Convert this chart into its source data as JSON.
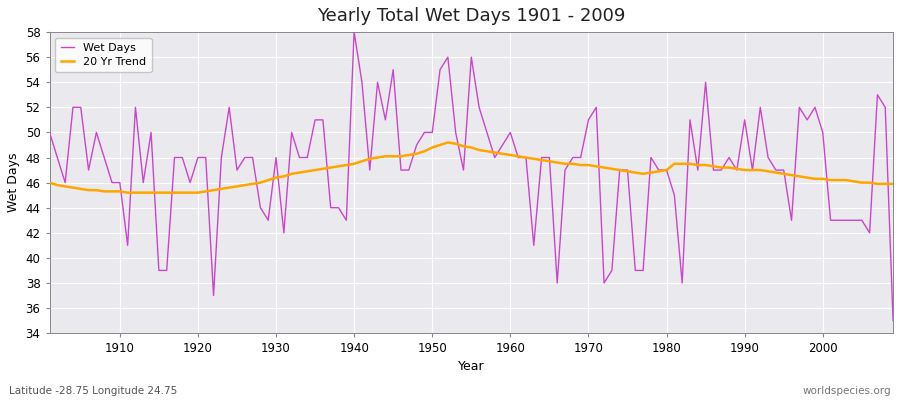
{
  "title": "Yearly Total Wet Days 1901 - 2009",
  "xlabel": "Year",
  "ylabel": "Wet Days",
  "subtitle": "Latitude -28.75 Longitude 24.75",
  "watermark": "worldspecies.org",
  "line_color": "#cc44cc",
  "trend_color": "#ffa500",
  "ylim": [
    34,
    58
  ],
  "yticks": [
    34,
    36,
    38,
    40,
    42,
    44,
    46,
    48,
    50,
    52,
    54,
    56,
    58
  ],
  "xlim": [
    1901,
    2009
  ],
  "xticks": [
    1910,
    1920,
    1930,
    1940,
    1950,
    1960,
    1970,
    1980,
    1990,
    2000
  ],
  "bg_color": "#eaeaee",
  "fig_color": "#ffffff",
  "grid_color": "#ffffff",
  "years": [
    1901,
    1902,
    1903,
    1904,
    1905,
    1906,
    1907,
    1908,
    1909,
    1910,
    1911,
    1912,
    1913,
    1914,
    1915,
    1916,
    1917,
    1918,
    1919,
    1920,
    1921,
    1922,
    1923,
    1924,
    1925,
    1926,
    1927,
    1928,
    1929,
    1930,
    1931,
    1932,
    1933,
    1934,
    1935,
    1936,
    1937,
    1938,
    1939,
    1940,
    1941,
    1942,
    1943,
    1944,
    1945,
    1946,
    1947,
    1948,
    1949,
    1950,
    1951,
    1952,
    1953,
    1954,
    1955,
    1956,
    1957,
    1958,
    1959,
    1960,
    1961,
    1962,
    1963,
    1964,
    1965,
    1966,
    1967,
    1968,
    1969,
    1970,
    1971,
    1972,
    1973,
    1974,
    1975,
    1976,
    1977,
    1978,
    1979,
    1980,
    1981,
    1982,
    1983,
    1984,
    1985,
    1986,
    1987,
    1988,
    1989,
    1990,
    1991,
    1992,
    1993,
    1994,
    1995,
    1996,
    1997,
    1998,
    1999,
    2000,
    2001,
    2002,
    2003,
    2004,
    2005,
    2006,
    2007,
    2008,
    2009
  ],
  "wet_days": [
    50,
    48,
    46,
    52,
    52,
    47,
    50,
    48,
    46,
    46,
    41,
    52,
    46,
    50,
    39,
    39,
    48,
    48,
    46,
    48,
    48,
    37,
    48,
    52,
    47,
    48,
    48,
    44,
    43,
    48,
    42,
    50,
    48,
    48,
    51,
    51,
    44,
    44,
    43,
    58,
    54,
    47,
    54,
    51,
    55,
    47,
    47,
    49,
    50,
    50,
    55,
    56,
    50,
    47,
    56,
    52,
    50,
    48,
    49,
    50,
    48,
    48,
    41,
    48,
    48,
    38,
    47,
    48,
    48,
    51,
    52,
    38,
    39,
    47,
    47,
    39,
    39,
    48,
    47,
    47,
    45,
    38,
    51,
    47,
    54,
    47,
    47,
    48,
    47,
    51,
    47,
    52,
    48,
    47,
    47,
    43,
    52,
    51,
    52,
    50,
    43,
    43,
    43,
    43,
    43,
    42,
    53,
    52,
    35
  ],
  "trend_years": [
    1901,
    1902,
    1903,
    1904,
    1905,
    1906,
    1907,
    1908,
    1909,
    1910,
    1911,
    1912,
    1913,
    1914,
    1915,
    1916,
    1917,
    1918,
    1919,
    1920,
    1921,
    1922,
    1923,
    1924,
    1925,
    1926,
    1927,
    1928,
    1929,
    1930,
    1931,
    1932,
    1933,
    1934,
    1935,
    1936,
    1937,
    1938,
    1939,
    1940,
    1941,
    1942,
    1943,
    1944,
    1945,
    1946,
    1947,
    1948,
    1949,
    1950,
    1951,
    1952,
    1953,
    1954,
    1955,
    1956,
    1957,
    1958,
    1959,
    1960,
    1961,
    1962,
    1963,
    1964,
    1965,
    1966,
    1967,
    1968,
    1969,
    1970,
    1971,
    1972,
    1973,
    1974,
    1975,
    1976,
    1977,
    1978,
    1979,
    1980,
    1981,
    1982,
    1983,
    1984,
    1985,
    1986,
    1987,
    1988,
    1989,
    1990,
    1991,
    1992,
    1993,
    1994,
    1995,
    1996,
    1997,
    1998,
    1999,
    2000,
    2001,
    2002,
    2003,
    2004,
    2005,
    2006,
    2007,
    2008,
    2009
  ],
  "trend_values": [
    46.0,
    45.8,
    45.7,
    45.6,
    45.5,
    45.4,
    45.4,
    45.3,
    45.3,
    45.3,
    45.2,
    45.2,
    45.2,
    45.2,
    45.2,
    45.2,
    45.2,
    45.2,
    45.2,
    45.2,
    45.3,
    45.4,
    45.5,
    45.6,
    45.7,
    45.8,
    45.9,
    46.0,
    46.2,
    46.4,
    46.5,
    46.7,
    46.8,
    46.9,
    47.0,
    47.1,
    47.2,
    47.3,
    47.4,
    47.5,
    47.7,
    47.9,
    48.0,
    48.1,
    48.1,
    48.1,
    48.2,
    48.3,
    48.5,
    48.8,
    49.0,
    49.2,
    49.1,
    48.9,
    48.8,
    48.6,
    48.5,
    48.4,
    48.3,
    48.2,
    48.1,
    48.0,
    47.9,
    47.8,
    47.7,
    47.6,
    47.5,
    47.5,
    47.4,
    47.4,
    47.3,
    47.2,
    47.1,
    47.0,
    46.9,
    46.8,
    46.7,
    46.8,
    46.9,
    47.0,
    47.5,
    47.5,
    47.5,
    47.4,
    47.4,
    47.3,
    47.2,
    47.2,
    47.1,
    47.0,
    47.0,
    47.0,
    46.9,
    46.8,
    46.7,
    46.6,
    46.5,
    46.4,
    46.3,
    46.3,
    46.2,
    46.2,
    46.2,
    46.1,
    46.0,
    46.0,
    45.9,
    45.9,
    45.9
  ]
}
